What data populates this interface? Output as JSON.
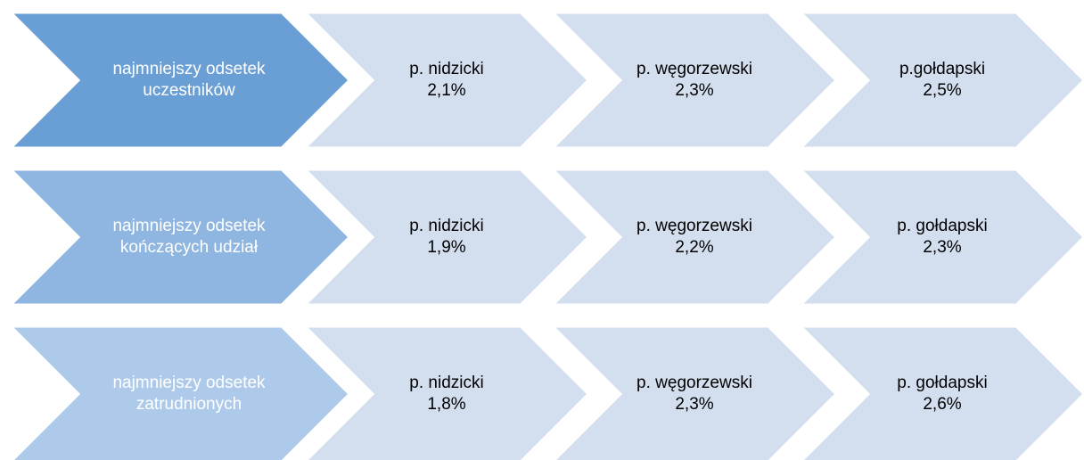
{
  "rows": [
    {
      "label": [
        "najmniejszy odsetek",
        "uczestników"
      ],
      "items": [
        {
          "name": "p. nidzicki",
          "value": "2,1%"
        },
        {
          "name": "p. węgorzewski",
          "value": "2,3%"
        },
        {
          "name": "p.gołdapski",
          "value": "2,5%"
        }
      ]
    },
    {
      "label": [
        "najmniejszy odsetek",
        "kończących udział"
      ],
      "items": [
        {
          "name": "p. nidzicki",
          "value": "1,9%"
        },
        {
          "name": "p. węgorzewski",
          "value": "2,2%"
        },
        {
          "name": "p. gołdapski",
          "value": "2,3%"
        }
      ]
    },
    {
      "label": [
        "najmniejszy odsetek",
        "zatrudnionych"
      ],
      "items": [
        {
          "name": "p. nidzicki",
          "value": "1,8%"
        },
        {
          "name": "p. węgorzewski",
          "value": "2,3%"
        },
        {
          "name": "p. gołdapski",
          "value": "2,6%"
        }
      ]
    }
  ]
}
